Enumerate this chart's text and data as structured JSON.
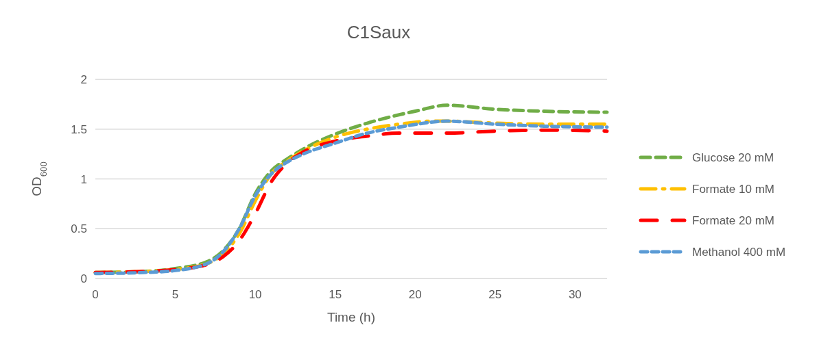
{
  "chart_data": {
    "type": "line",
    "title": "C1Saux",
    "xlabel": "Time (h)",
    "ylabel": "OD$_{600}$",
    "xlim": [
      0,
      32
    ],
    "xticks": [
      0,
      5,
      10,
      15,
      20,
      25,
      30
    ],
    "ylim": [
      0,
      2
    ],
    "yticks": [
      0,
      0.5,
      1,
      1.5,
      2
    ],
    "grid": "y",
    "legend": "right",
    "line_style": "dashed",
    "series": [
      {
        "name": "Glucose 20 mM",
        "color": "#70ad47",
        "x": [
          0,
          3,
          5,
          7,
          8,
          9,
          10,
          11,
          12,
          13,
          15,
          17,
          20,
          22,
          25,
          28,
          32
        ],
        "values": [
          0.06,
          0.07,
          0.1,
          0.17,
          0.28,
          0.5,
          0.85,
          1.08,
          1.2,
          1.3,
          1.45,
          1.56,
          1.68,
          1.74,
          1.7,
          1.68,
          1.67
        ]
      },
      {
        "name": "Formate 10 mM",
        "color": "#ffc000",
        "x": [
          0,
          3,
          5,
          7,
          8,
          9,
          10,
          11,
          12,
          13,
          15,
          17,
          19,
          21,
          22,
          25,
          28,
          32
        ],
        "values": [
          0.06,
          0.07,
          0.09,
          0.15,
          0.25,
          0.45,
          0.78,
          1.05,
          1.18,
          1.28,
          1.42,
          1.5,
          1.55,
          1.58,
          1.58,
          1.56,
          1.55,
          1.55
        ]
      },
      {
        "name": "Formate 20 mM",
        "color": "#ff0000",
        "x": [
          0,
          3,
          5,
          7,
          8,
          9,
          10,
          11,
          12,
          13,
          15,
          17,
          19,
          22,
          25,
          28,
          32
        ],
        "values": [
          0.06,
          0.07,
          0.09,
          0.14,
          0.22,
          0.38,
          0.65,
          0.97,
          1.16,
          1.27,
          1.38,
          1.43,
          1.46,
          1.46,
          1.48,
          1.49,
          1.48
        ]
      },
      {
        "name": "Methanol 400 mM",
        "color": "#5b9bd5",
        "x": [
          0,
          3,
          5,
          7,
          8,
          9,
          10,
          11,
          12,
          13,
          15,
          17,
          19,
          22,
          25,
          28,
          32
        ],
        "values": [
          0.05,
          0.06,
          0.08,
          0.15,
          0.27,
          0.5,
          0.83,
          1.05,
          1.17,
          1.25,
          1.36,
          1.46,
          1.52,
          1.58,
          1.55,
          1.53,
          1.52
        ]
      }
    ]
  }
}
